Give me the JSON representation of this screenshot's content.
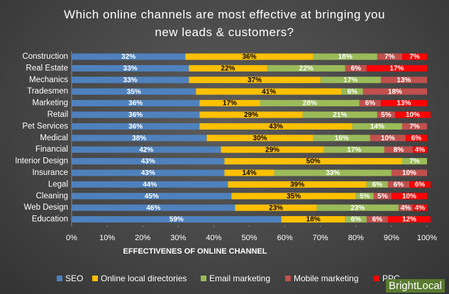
{
  "chart_data": {
    "type": "stacked-bar-horizontal",
    "title": "Which online channels are most effective at bringing you new leads & customers?",
    "x_label": "EFFECTIVENES OF ONLINE CHANNEL",
    "categories": [
      "Construction",
      "Real Estate",
      "Mechanics",
      "Tradesmen",
      "Marketing",
      "Retail",
      "Pet Services",
      "Medical",
      "Financial",
      "Interior Design",
      "Insurance",
      "Legal",
      "Cleaning",
      "Web Design",
      "Education"
    ],
    "series": [
      {
        "name": "SEO",
        "color": "#4f81bd",
        "values": [
          32,
          33,
          33,
          35,
          36,
          36,
          36,
          38,
          42,
          43,
          43,
          44,
          45,
          46,
          59
        ],
        "value_labels": [
          "32%",
          "33%",
          "33%",
          "35%",
          "36%",
          "36%",
          "36%",
          "38%",
          "42%",
          "43%",
          "43%",
          "44%",
          "45%",
          "46%",
          "59%"
        ]
      },
      {
        "name": "Online local directories",
        "color": "#ffc000",
        "values": [
          36,
          22,
          37,
          41,
          17,
          29,
          43,
          30,
          29,
          50,
          14,
          39,
          35,
          23,
          18
        ],
        "value_labels": [
          "36%",
          "22%",
          "37%",
          "41%",
          "17%",
          "29%",
          "43%",
          "30%",
          "29%",
          "50%",
          "14%",
          "39%",
          "35%",
          "23%",
          "18%"
        ]
      },
      {
        "name": "Email marketing",
        "color": "#9bbb59",
        "values": [
          18,
          22,
          17,
          6,
          28,
          21,
          14,
          16,
          17,
          7,
          33,
          6,
          5,
          23,
          6
        ],
        "value_labels": [
          "18%",
          "22%",
          "17%",
          "6%",
          "28%",
          "21%",
          "14%",
          "16%",
          "17%",
          "7%",
          "33%",
          "6%",
          "5%",
          "23%",
          "6%"
        ]
      },
      {
        "name": "Mobile marketing",
        "color": "#c0504d",
        "values": [
          7,
          6,
          13,
          18,
          6,
          5,
          7,
          10,
          8,
          0,
          10,
          6,
          5,
          4,
          6
        ],
        "value_labels": [
          "7%",
          "6%",
          "13%",
          "18%",
          "6%",
          "5%",
          "7%",
          "10%",
          "8%",
          null,
          "10%",
          "6%",
          "5%",
          "4%",
          "6%"
        ]
      },
      {
        "name": "PPC",
        "color": "#ff0000",
        "values": [
          7,
          17,
          0,
          0,
          13,
          10,
          0,
          6,
          4,
          0,
          0,
          6,
          10,
          4,
          12
        ],
        "value_labels": [
          "7%",
          "17%",
          null,
          null,
          "13%",
          "10%",
          null,
          "6%",
          "4%",
          null,
          null,
          "6%",
          "10%",
          "4%",
          "12%"
        ]
      }
    ],
    "xlim": [
      0,
      100
    ],
    "xticks": [
      {
        "value": 0,
        "label": "0%"
      },
      {
        "value": 10,
        "label": "10%"
      },
      {
        "value": 20,
        "label": "20%"
      },
      {
        "value": 30,
        "label": "30%"
      },
      {
        "value": 40,
        "label": "40%"
      },
      {
        "value": 50,
        "label": "50%"
      },
      {
        "value": 60,
        "label": "60%"
      },
      {
        "value": 70,
        "label": "70%"
      },
      {
        "value": 80,
        "label": "80%"
      },
      {
        "value": 90,
        "label": "90%"
      },
      {
        "value": 100,
        "label": "100%"
      }
    ]
  },
  "logo": "BrightLocal"
}
